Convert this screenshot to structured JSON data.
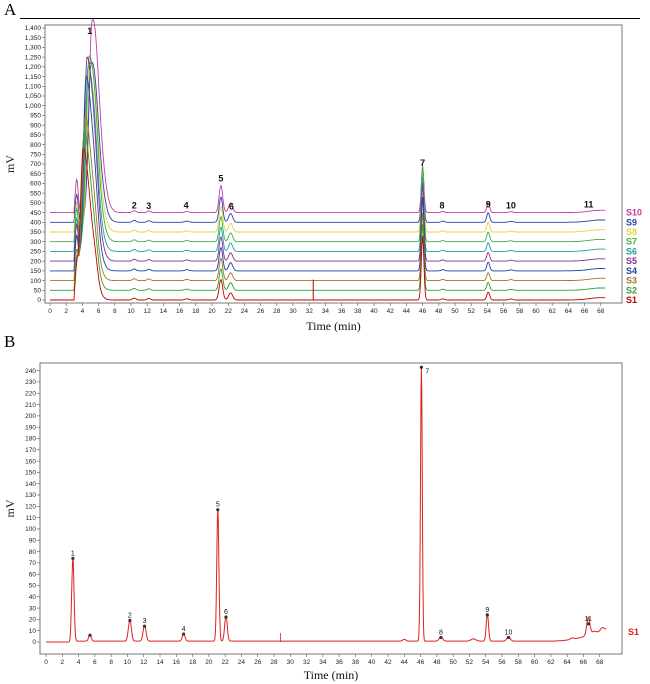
{
  "panel_a_letter": "A",
  "panel_b_letter": "B",
  "chart_data": [
    {
      "type": "line",
      "panel": "A",
      "xlabel": "Time (min)",
      "ylabel": "mV",
      "xlim": [
        0,
        70
      ],
      "ylim": [
        0,
        1400
      ],
      "x_ticks": [
        0,
        2,
        4,
        6,
        8,
        10,
        12,
        14,
        16,
        18,
        20,
        22,
        24,
        26,
        28,
        30,
        32,
        34,
        36,
        38,
        40,
        42,
        44,
        46,
        48,
        50,
        52,
        54,
        56,
        58,
        60,
        62,
        64,
        66,
        68
      ],
      "y_ticks": [
        0,
        50,
        100,
        150,
        200,
        250,
        300,
        350,
        400,
        450,
        500,
        550,
        600,
        650,
        700,
        750,
        800,
        850,
        900,
        950,
        1000,
        1050,
        1100,
        1150,
        1200,
        1250,
        1300,
        1350,
        1400
      ],
      "y_tick_labels": [
        "0",
        "50",
        "100",
        "150",
        "200",
        "250",
        "300",
        "350",
        "400",
        "450",
        "500",
        "550",
        "600",
        "650",
        "700",
        "750",
        "800",
        "850",
        "900",
        "950",
        "1,000",
        "1,050",
        "1,100",
        "1,150",
        "1,200",
        "1,250",
        "1,300",
        "1,350",
        "1,400"
      ],
      "legend_placement": "right",
      "peak_labels": [
        {
          "label": "1",
          "x": 4.1,
          "y": 1370
        },
        {
          "label": "2",
          "x": 10.4,
          "y": 470
        },
        {
          "label": "3",
          "x": 12.2,
          "y": 468
        },
        {
          "label": "4",
          "x": 16.8,
          "y": 470
        },
        {
          "label": "5",
          "x": 21.1,
          "y": 610
        },
        {
          "label": "6",
          "x": 22.4,
          "y": 465
        },
        {
          "label": "7",
          "x": 46.0,
          "y": 690
        },
        {
          "label": "8",
          "x": 48.4,
          "y": 470
        },
        {
          "label": "9",
          "x": 54.1,
          "y": 475
        },
        {
          "label": "10",
          "x": 56.9,
          "y": 470
        },
        {
          "label": "11",
          "x": 66.5,
          "y": 475
        }
      ],
      "series": [
        {
          "name": "S1",
          "color": "#c00000",
          "baseline": 0,
          "p1": 780,
          "p5": 105,
          "p7": 330,
          "p9": 40
        },
        {
          "name": "S2",
          "color": "#2e9e2e",
          "baseline": 50,
          "p1": 820,
          "p5": 110,
          "p7": 340,
          "p9": 40
        },
        {
          "name": "S3",
          "color": "#a07820",
          "baseline": 100,
          "p1": 850,
          "p5": 115,
          "p7": 350,
          "p9": 40
        },
        {
          "name": "S4",
          "color": "#1f3fa0",
          "baseline": 150,
          "p1": 1000,
          "p5": 120,
          "p7": 380,
          "p9": 45
        },
        {
          "name": "S5",
          "color": "#8e2c8e",
          "baseline": 200,
          "p1": 1050,
          "p5": 125,
          "p7": 400,
          "p9": 45
        },
        {
          "name": "S6",
          "color": "#1aa0a0",
          "baseline": 250,
          "p1": 950,
          "p5": 125,
          "p7": 380,
          "p9": 45
        },
        {
          "name": "S7",
          "color": "#3cb043",
          "baseline": 300,
          "p1": 950,
          "p5": 130,
          "p7": 390,
          "p9": 50
        },
        {
          "name": "S8",
          "color": "#e6d23a",
          "baseline": 350,
          "p1": 850,
          "p5": 130,
          "p7": 340,
          "p9": 50
        },
        {
          "name": "S9",
          "color": "#2c3fa8",
          "baseline": 400,
          "p1": 800,
          "p5": 130,
          "p7": 290,
          "p9": 50
        },
        {
          "name": "S10",
          "color": "#c43aa8",
          "baseline": 450,
          "p1": 950,
          "p5": 140,
          "p7": 240,
          "p9": 50
        }
      ]
    },
    {
      "type": "line",
      "panel": "B",
      "xlabel": "Time (min)",
      "ylabel": "mV",
      "xlim": [
        0,
        70
      ],
      "ylim": [
        0,
        245
      ],
      "x_ticks": [
        0,
        2,
        4,
        6,
        8,
        10,
        12,
        14,
        16,
        18,
        20,
        22,
        24,
        26,
        28,
        30,
        32,
        34,
        36,
        38,
        40,
        42,
        44,
        46,
        48,
        50,
        52,
        54,
        56,
        58,
        60,
        62,
        64,
        66,
        68
      ],
      "y_ticks": [
        0,
        10,
        20,
        30,
        40,
        50,
        60,
        70,
        80,
        90,
        100,
        110,
        120,
        130,
        140,
        150,
        160,
        170,
        180,
        190,
        200,
        210,
        220,
        230,
        240
      ],
      "series_name": "S1",
      "color": "#e02020",
      "peaks": [
        {
          "label": "1",
          "x": 3.3,
          "y": 74
        },
        {
          "label": "",
          "x": 5.4,
          "y": 6
        },
        {
          "label": "2",
          "x": 10.3,
          "y": 19
        },
        {
          "label": "3",
          "x": 12.1,
          "y": 14
        },
        {
          "label": "4",
          "x": 16.9,
          "y": 7
        },
        {
          "label": "5",
          "x": 21.1,
          "y": 117
        },
        {
          "label": "6",
          "x": 22.1,
          "y": 22
        },
        {
          "label": "7",
          "x": 46.1,
          "y": 243
        },
        {
          "label": "8",
          "x": 48.5,
          "y": 4
        },
        {
          "label": "9",
          "x": 54.2,
          "y": 24
        },
        {
          "label": "10",
          "x": 56.8,
          "y": 4
        },
        {
          "label": "11",
          "x": 66.6,
          "y": 16
        }
      ]
    }
  ]
}
